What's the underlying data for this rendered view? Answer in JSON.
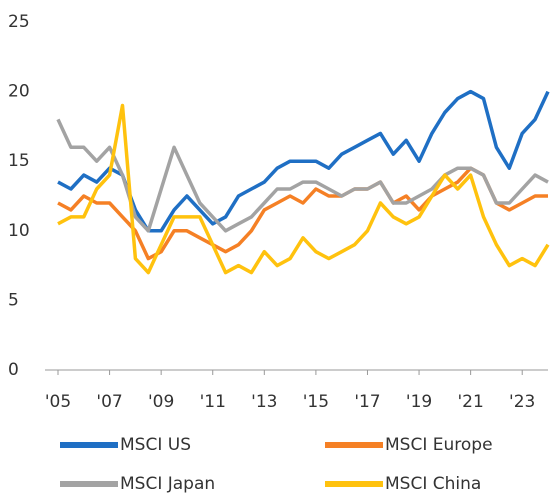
{
  "chart_data": {
    "type": "line",
    "x": [
      2005,
      2005.5,
      2006,
      2006.5,
      2007,
      2007.5,
      2008,
      2008.5,
      2009,
      2009.5,
      2010,
      2010.5,
      2011,
      2011.5,
      2012,
      2012.5,
      2013,
      2013.5,
      2014,
      2014.5,
      2015,
      2015.5,
      2016,
      2016.5,
      2017,
      2017.5,
      2018,
      2018.5,
      2019,
      2019.5,
      2020,
      2020.5,
      2021,
      2021.5,
      2022,
      2022.5,
      2023,
      2023.5,
      2024
    ],
    "series": [
      {
        "name": "MSCI US",
        "color": "#1f6fc4",
        "values": [
          13.5,
          13,
          14,
          13.5,
          14.5,
          14,
          11.5,
          10,
          10,
          11.5,
          12.5,
          11.5,
          10.5,
          11,
          12.5,
          13,
          13.5,
          14.5,
          15,
          15,
          15,
          14.5,
          15.5,
          16,
          16.5,
          17,
          15.5,
          16.5,
          15,
          17,
          18.5,
          19.5,
          20,
          19.5,
          16,
          14.5,
          17,
          18,
          20
        ]
      },
      {
        "name": "MSCI Europe",
        "color": "#f58025",
        "values": [
          12,
          11.5,
          12.5,
          12,
          12,
          11,
          10,
          8,
          8.5,
          10,
          10,
          9.5,
          9,
          8.5,
          9,
          10,
          11.5,
          12,
          12.5,
          12,
          13,
          12.5,
          12.5,
          13,
          13,
          13.5,
          12,
          12.5,
          11.5,
          12.5,
          13,
          13.5,
          14.5,
          14,
          12,
          11.5,
          12,
          12.5,
          12.5
        ]
      },
      {
        "name": "MSCI Japan",
        "color": "#a3a3a3",
        "values": [
          18,
          16,
          16,
          15,
          16,
          14,
          11,
          10,
          13,
          16,
          14,
          12,
          11,
          10,
          10.5,
          11,
          12,
          13,
          13,
          13.5,
          13.5,
          13,
          12.5,
          13,
          13,
          13.5,
          12,
          12,
          12.5,
          13,
          14,
          14.5,
          14.5,
          14,
          12,
          12,
          13,
          14,
          13.5
        ]
      },
      {
        "name": "MSCI China",
        "color": "#ffc20e",
        "values": [
          10.5,
          11,
          11,
          13,
          14,
          19,
          8,
          7,
          9,
          11,
          11,
          11,
          9,
          7,
          7.5,
          7,
          8.5,
          7.5,
          8,
          9.5,
          8.5,
          8,
          8.5,
          9,
          10,
          12,
          11,
          10.5,
          11,
          12.5,
          14,
          13,
          14,
          11,
          9,
          7.5,
          8,
          7.5,
          9
        ]
      }
    ],
    "xlim": [
      2005,
      2024
    ],
    "xticks": [
      {
        "value": 2005,
        "label": "'05"
      },
      {
        "value": 2007,
        "label": "'07"
      },
      {
        "value": 2009,
        "label": "'09"
      },
      {
        "value": 2011,
        "label": "'11"
      },
      {
        "value": 2013,
        "label": "'13"
      },
      {
        "value": 2015,
        "label": "'15"
      },
      {
        "value": 2017,
        "label": "'17"
      },
      {
        "value": 2019,
        "label": "'19"
      },
      {
        "value": 2021,
        "label": "'21"
      },
      {
        "value": 2023,
        "label": "'23"
      }
    ],
    "ylim": [
      0,
      25
    ],
    "yticks": [
      0,
      5,
      10,
      15,
      20,
      25
    ],
    "grid": false
  }
}
